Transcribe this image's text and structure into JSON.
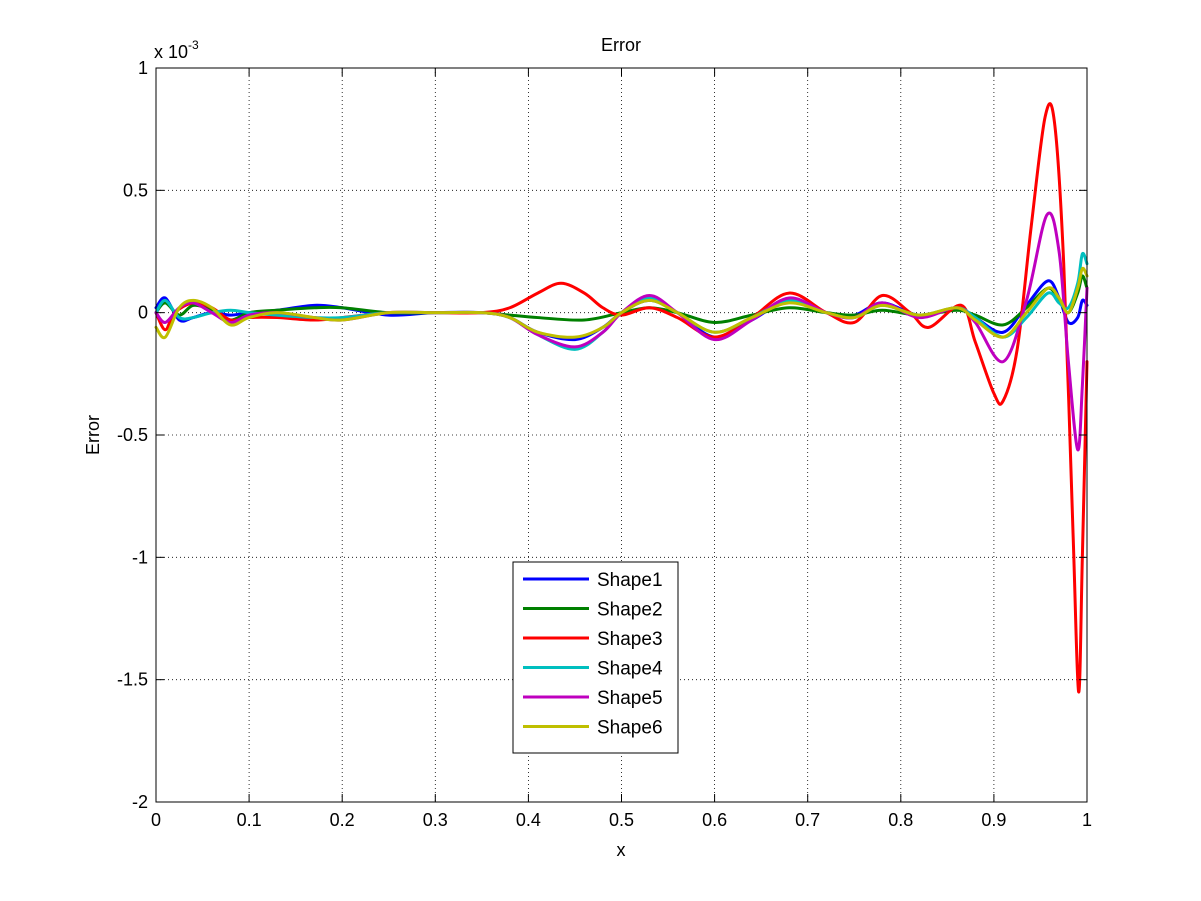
{
  "chart_data": {
    "type": "line",
    "title": "Error",
    "xlabel": "x",
    "ylabel": "Error",
    "y_multiplier_base": "x 10",
    "y_multiplier_exp": "-3",
    "xlim": [
      0,
      1
    ],
    "ylim": [
      -2,
      1
    ],
    "grid": true,
    "legend_position": "lower-center",
    "x_ticks": [
      0,
      0.1,
      0.2,
      0.3,
      0.4,
      0.5,
      0.6,
      0.7,
      0.8,
      0.9,
      1
    ],
    "x_tick_labels": [
      "0",
      "0.1",
      "0.2",
      "0.3",
      "0.4",
      "0.5",
      "0.6",
      "0.7",
      "0.8",
      "0.9",
      "1"
    ],
    "y_ticks": [
      -2,
      -1.5,
      -1,
      -0.5,
      0,
      0.5,
      1
    ],
    "y_tick_labels": [
      "-2",
      "-1.5",
      "-1",
      "-0.5",
      "0",
      "0.5",
      "1"
    ],
    "series": [
      {
        "name": "Shape1",
        "color": "#0000ff",
        "x": [
          0,
          0.01,
          0.025,
          0.04,
          0.06,
          0.08,
          0.1,
          0.13,
          0.17,
          0.2,
          0.25,
          0.3,
          0.35,
          0.38,
          0.41,
          0.45,
          0.48,
          0.5,
          0.53,
          0.56,
          0.6,
          0.64,
          0.68,
          0.72,
          0.75,
          0.78,
          0.82,
          0.86,
          0.88,
          0.91,
          0.935,
          0.958,
          0.97,
          0.98,
          0.99,
          0.995,
          1
        ],
        "y": [
          0.02,
          0.06,
          -0.03,
          -0.02,
          0.0,
          -0.01,
          0.0,
          0.01,
          0.03,
          0.02,
          -0.01,
          0.0,
          0.0,
          -0.02,
          -0.08,
          -0.11,
          -0.06,
          0.0,
          0.05,
          0.0,
          -0.1,
          -0.03,
          0.05,
          0.0,
          -0.01,
          0.04,
          -0.01,
          0.02,
          -0.02,
          -0.08,
          0.03,
          0.13,
          0.06,
          -0.04,
          -0.02,
          0.05,
          0.03
        ]
      },
      {
        "name": "Shape2",
        "color": "#008000",
        "x": [
          0,
          0.01,
          0.025,
          0.04,
          0.06,
          0.08,
          0.1,
          0.13,
          0.17,
          0.2,
          0.25,
          0.3,
          0.35,
          0.38,
          0.41,
          0.46,
          0.5,
          0.53,
          0.56,
          0.6,
          0.64,
          0.68,
          0.72,
          0.75,
          0.78,
          0.82,
          0.86,
          0.88,
          0.91,
          0.935,
          0.958,
          0.97,
          0.98,
          0.99,
          0.995,
          1
        ],
        "y": [
          0.0,
          0.04,
          -0.01,
          0.03,
          0.01,
          -0.03,
          0.0,
          0.01,
          0.02,
          0.02,
          0.0,
          0.0,
          0.0,
          -0.01,
          -0.02,
          -0.03,
          0.0,
          0.02,
          0.0,
          -0.04,
          -0.01,
          0.02,
          0.0,
          -0.01,
          0.01,
          -0.01,
          0.01,
          -0.01,
          -0.05,
          0.02,
          0.1,
          0.05,
          0.0,
          0.08,
          0.15,
          0.1
        ]
      },
      {
        "name": "Shape3",
        "color": "#ff0000",
        "x": [
          0,
          0.01,
          0.02,
          0.04,
          0.06,
          0.08,
          0.1,
          0.13,
          0.17,
          0.2,
          0.25,
          0.3,
          0.35,
          0.38,
          0.41,
          0.435,
          0.46,
          0.48,
          0.5,
          0.53,
          0.56,
          0.6,
          0.64,
          0.68,
          0.72,
          0.75,
          0.78,
          0.81,
          0.83,
          0.865,
          0.88,
          0.9,
          0.91,
          0.925,
          0.94,
          0.955,
          0.965,
          0.975,
          0.985,
          0.991,
          0.995,
          1
        ],
        "y": [
          0.0,
          -0.07,
          0.0,
          0.04,
          0.02,
          -0.03,
          -0.02,
          -0.02,
          -0.03,
          -0.02,
          0.0,
          0.0,
          0.0,
          0.02,
          0.08,
          0.12,
          0.08,
          0.02,
          -0.01,
          0.02,
          -0.02,
          -0.1,
          -0.02,
          0.08,
          0.0,
          -0.04,
          0.07,
          0.0,
          -0.06,
          0.03,
          -0.12,
          -0.33,
          -0.36,
          -0.15,
          0.35,
          0.8,
          0.78,
          0.2,
          -0.9,
          -1.55,
          -1.0,
          -0.2
        ]
      },
      {
        "name": "Shape4",
        "color": "#00bfbf",
        "x": [
          0,
          0.01,
          0.025,
          0.04,
          0.06,
          0.08,
          0.1,
          0.13,
          0.17,
          0.2,
          0.25,
          0.3,
          0.35,
          0.38,
          0.41,
          0.45,
          0.48,
          0.5,
          0.53,
          0.56,
          0.6,
          0.64,
          0.68,
          0.72,
          0.75,
          0.78,
          0.82,
          0.86,
          0.88,
          0.91,
          0.935,
          0.958,
          0.97,
          0.98,
          0.99,
          0.995,
          1
        ],
        "y": [
          0.0,
          0.05,
          -0.02,
          -0.02,
          0.0,
          0.01,
          0.0,
          -0.01,
          -0.02,
          -0.02,
          0.0,
          0.0,
          0.0,
          -0.02,
          -0.09,
          -0.15,
          -0.08,
          0.0,
          0.06,
          0.0,
          -0.08,
          -0.02,
          0.05,
          0.0,
          -0.02,
          0.03,
          -0.01,
          0.02,
          -0.02,
          -0.1,
          -0.02,
          0.08,
          0.04,
          0.02,
          0.12,
          0.24,
          0.2
        ]
      },
      {
        "name": "Shape5",
        "color": "#bf00bf",
        "x": [
          0,
          0.01,
          0.025,
          0.04,
          0.06,
          0.08,
          0.1,
          0.13,
          0.17,
          0.2,
          0.25,
          0.3,
          0.35,
          0.38,
          0.41,
          0.45,
          0.48,
          0.5,
          0.53,
          0.56,
          0.6,
          0.64,
          0.68,
          0.72,
          0.75,
          0.78,
          0.82,
          0.86,
          0.88,
          0.91,
          0.935,
          0.957,
          0.97,
          0.98,
          0.99,
          0.995,
          1
        ],
        "y": [
          0.0,
          -0.04,
          0.02,
          0.04,
          0.0,
          -0.04,
          -0.01,
          0.0,
          -0.02,
          -0.03,
          0.0,
          0.0,
          0.0,
          -0.02,
          -0.09,
          -0.14,
          -0.08,
          0.0,
          0.07,
          0.0,
          -0.11,
          -0.03,
          0.06,
          0.0,
          -0.02,
          0.04,
          -0.02,
          0.02,
          -0.04,
          -0.2,
          0.05,
          0.4,
          0.25,
          -0.2,
          -0.56,
          -0.3,
          0.1
        ]
      },
      {
        "name": "Shape6",
        "color": "#bfbf00",
        "x": [
          0,
          0.01,
          0.025,
          0.04,
          0.06,
          0.08,
          0.1,
          0.13,
          0.17,
          0.2,
          0.25,
          0.3,
          0.35,
          0.38,
          0.41,
          0.45,
          0.48,
          0.5,
          0.53,
          0.56,
          0.6,
          0.64,
          0.68,
          0.72,
          0.75,
          0.78,
          0.82,
          0.86,
          0.88,
          0.91,
          0.935,
          0.958,
          0.97,
          0.98,
          0.99,
          0.995,
          1
        ],
        "y": [
          -0.06,
          -0.1,
          0.02,
          0.05,
          0.02,
          -0.05,
          -0.02,
          0.0,
          -0.02,
          -0.03,
          0.0,
          0.0,
          0.0,
          -0.02,
          -0.08,
          -0.1,
          -0.06,
          0.0,
          0.05,
          0.0,
          -0.08,
          -0.02,
          0.04,
          0.0,
          -0.02,
          0.03,
          -0.01,
          0.02,
          -0.03,
          -0.1,
          0.0,
          0.1,
          0.06,
          0.0,
          0.1,
          0.18,
          0.15
        ]
      }
    ]
  }
}
